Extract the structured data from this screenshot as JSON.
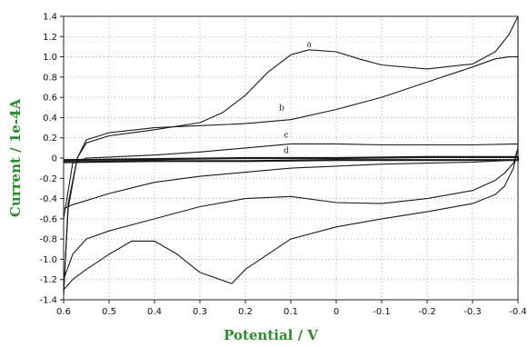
{
  "chart_data": {
    "type": "line",
    "title": "",
    "xlabel": "Potential / V",
    "ylabel": "Current / 1e-4A",
    "axis_label_color": "#2e8b2e",
    "line_color": "#1a1a1a",
    "grid": true,
    "xlim": [
      0.6,
      -0.4
    ],
    "ylim": [
      -1.4,
      1.4
    ],
    "x_ticks": [
      0.6,
      0.5,
      0.4,
      0.3,
      0.2,
      0.1,
      0,
      -0.1,
      -0.2,
      -0.3,
      -0.4
    ],
    "x_tick_labels": [
      "0.6",
      "0.5",
      "0.4",
      "0.3",
      "0.2",
      "0.1",
      "0",
      "-0.1",
      "-0.2",
      "-0.3",
      "-0.4"
    ],
    "y_ticks": [
      1.4,
      1.2,
      1.0,
      0.8,
      0.6,
      0.4,
      0.2,
      0,
      -0.2,
      -0.4,
      -0.6,
      -0.8,
      -1.0,
      -1.2,
      -1.4
    ],
    "y_tick_labels": [
      "1.4",
      "1.2",
      "1.0",
      "0.8",
      "0.6",
      "0.4",
      "0.2",
      "0",
      "-0.2",
      "-0.4",
      "-0.6",
      "-0.8",
      "-1.0",
      "-1.2",
      "-1.4"
    ],
    "series": [
      {
        "name": "a",
        "label_at": [
          0.06,
          1.1
        ],
        "x": [
          0.6,
          0.59,
          0.57,
          0.55,
          0.5,
          0.4,
          0.3,
          0.25,
          0.2,
          0.15,
          0.1,
          0.06,
          0.0,
          -0.05,
          -0.1,
          -0.2,
          -0.3,
          -0.35,
          -0.38,
          -0.4,
          -0.4,
          -0.39,
          -0.37,
          -0.35,
          -0.3,
          -0.2,
          -0.1,
          0.0,
          0.1,
          0.2,
          0.23,
          0.3,
          0.35,
          0.4,
          0.45,
          0.5,
          0.55,
          0.58,
          0.6
        ],
        "y": [
          -1.35,
          -0.5,
          0.0,
          0.15,
          0.22,
          0.28,
          0.35,
          0.45,
          0.62,
          0.85,
          1.02,
          1.07,
          1.05,
          0.98,
          0.92,
          0.88,
          0.93,
          1.05,
          1.22,
          1.4,
          0.1,
          -0.1,
          -0.28,
          -0.36,
          -0.45,
          -0.53,
          -0.6,
          -0.68,
          -0.8,
          -1.1,
          -1.24,
          -1.13,
          -0.95,
          -0.82,
          -0.82,
          -0.95,
          -1.1,
          -1.2,
          -1.3
        ]
      },
      {
        "name": "b",
        "label_at": [
          0.12,
          0.47
        ],
        "x": [
          0.6,
          0.59,
          0.57,
          0.55,
          0.5,
          0.4,
          0.3,
          0.2,
          0.1,
          0.0,
          -0.1,
          -0.2,
          -0.3,
          -0.35,
          -0.38,
          -0.4,
          -0.4,
          -0.39,
          -0.37,
          -0.35,
          -0.3,
          -0.2,
          -0.1,
          0.0,
          0.1,
          0.2,
          0.3,
          0.4,
          0.5,
          0.55,
          0.58,
          0.6
        ],
        "y": [
          -1.35,
          -0.45,
          0.0,
          0.18,
          0.25,
          0.3,
          0.32,
          0.34,
          0.38,
          0.48,
          0.6,
          0.75,
          0.9,
          0.98,
          1.0,
          1.0,
          0.1,
          -0.05,
          -0.15,
          -0.22,
          -0.32,
          -0.4,
          -0.45,
          -0.44,
          -0.38,
          -0.4,
          -0.48,
          -0.6,
          -0.72,
          -0.8,
          -0.95,
          -1.2
        ]
      },
      {
        "name": "c",
        "label_at": [
          0.11,
          0.2
        ],
        "x": [
          0.6,
          0.58,
          0.55,
          0.5,
          0.4,
          0.3,
          0.2,
          0.1,
          0.0,
          -0.1,
          -0.2,
          -0.3,
          -0.4,
          -0.4,
          -0.3,
          -0.2,
          -0.1,
          0.0,
          0.1,
          0.2,
          0.3,
          0.4,
          0.5,
          0.55,
          0.58,
          0.6
        ],
        "y": [
          -0.6,
          -0.05,
          0.0,
          0.01,
          0.03,
          0.06,
          0.1,
          0.14,
          0.14,
          0.13,
          0.13,
          0.13,
          0.14,
          -0.02,
          -0.04,
          -0.05,
          -0.06,
          -0.08,
          -0.1,
          -0.14,
          -0.18,
          -0.24,
          -0.35,
          -0.42,
          -0.46,
          -0.5
        ]
      },
      {
        "name": "d",
        "label_at": [
          0.11,
          0.05
        ],
        "x": [
          0.6,
          0.4,
          0.2,
          0.0,
          -0.2,
          -0.4,
          -0.4,
          -0.2,
          0.0,
          0.2,
          0.4,
          0.6
        ],
        "y": [
          -0.02,
          -0.01,
          0.0,
          0.0,
          0.01,
          0.01,
          -0.02,
          -0.02,
          -0.02,
          -0.03,
          -0.03,
          -0.04
        ]
      }
    ]
  }
}
